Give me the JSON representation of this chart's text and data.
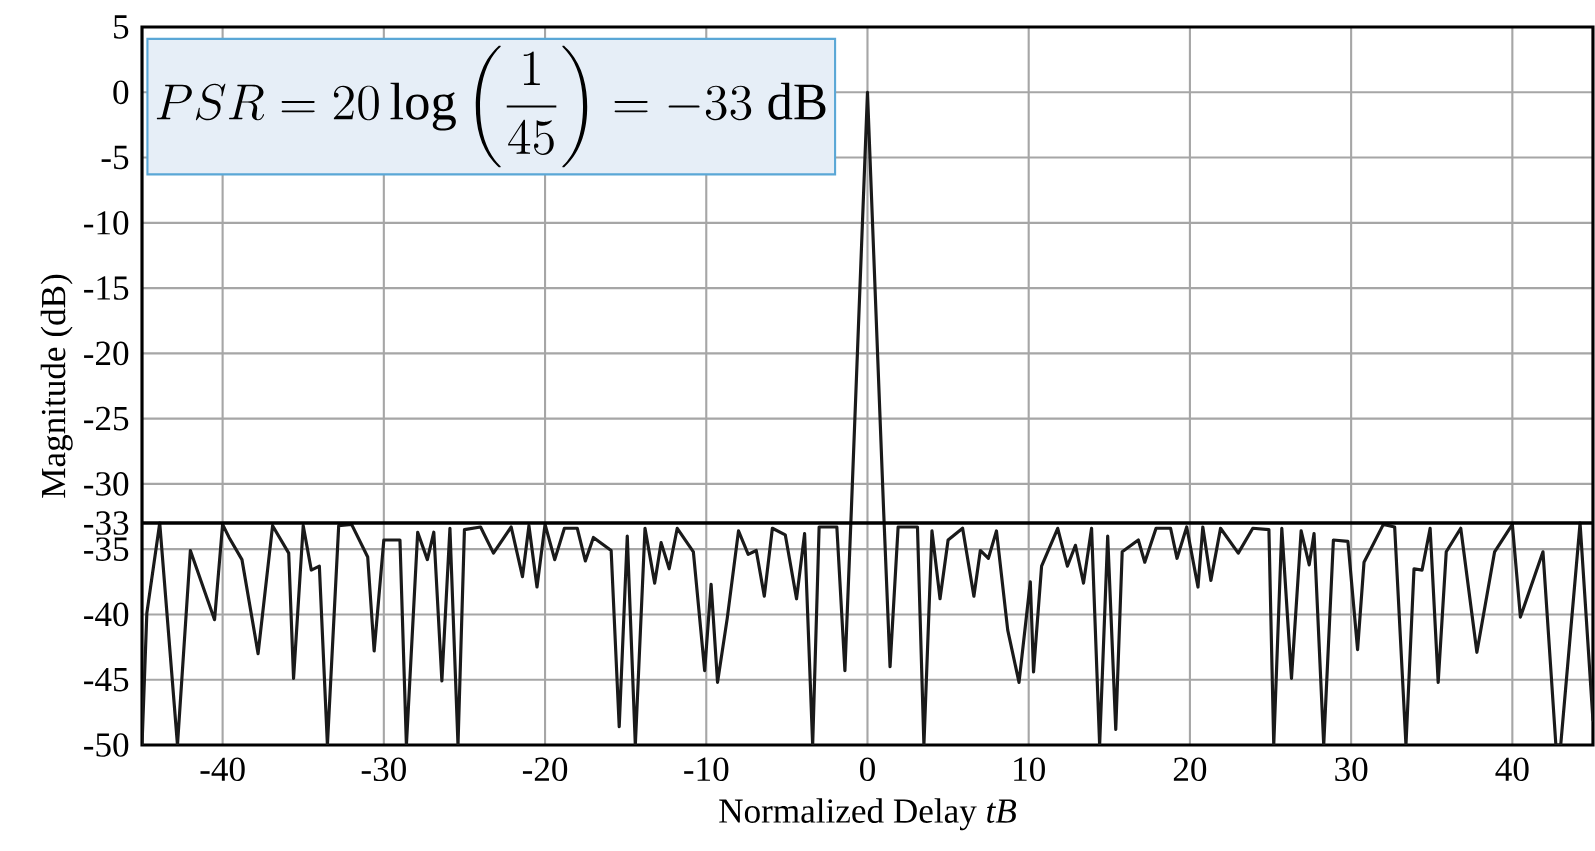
{
  "chart_data": {
    "type": "line",
    "xlabel": "Normalized Delay *tB*",
    "ylabel": "Magnitude (dB)",
    "annotations": [
      "PSR = 20\\log\\left(\\frac{1}{45}\\right) = -33\\ \\mathrm{dB}"
    ],
    "xlim": [
      -45,
      45
    ],
    "xticks": [
      -40,
      -30,
      -20,
      -10,
      0,
      10,
      20,
      30,
      40
    ],
    "ylim": [
      -50,
      5
    ],
    "yticks": [
      5,
      0,
      -5,
      -10,
      -15,
      -20,
      -25,
      -30,
      -33,
      -35,
      -40,
      -45,
      -50
    ],
    "grid": true,
    "marker": "none",
    "line_style": "solid",
    "ref_lines": [
      {
        "axis": "y",
        "value": -33,
        "color": "#000000"
      }
    ],
    "series": [
      {
        "color": "#1a1a1a",
        "x": [
          -45.0,
          -44.7,
          -43.9,
          -42.8,
          -42.0,
          -40.5,
          -40.0,
          -39.6,
          -38.8,
          -37.8,
          -36.9,
          -35.9,
          -35.6,
          -35.0,
          -34.5,
          -34.0,
          -33.5,
          -32.8,
          -32.0,
          -31.0,
          -30.6,
          -30.0,
          -29.0,
          -28.6,
          -27.9,
          -27.3,
          -26.9,
          -26.4,
          -25.9,
          -25.4,
          -25.0,
          -24.0,
          -23.2,
          -22.1,
          -21.4,
          -21.0,
          -20.5,
          -20.0,
          -19.4,
          -18.8,
          -18.0,
          -17.5,
          -17.0,
          -15.9,
          -15.4,
          -14.9,
          -14.4,
          -13.8,
          -13.2,
          -12.8,
          -12.3,
          -11.8,
          -10.8,
          -10.1,
          -9.7,
          -9.3,
          -8.7,
          -8.0,
          -7.4,
          -6.9,
          -6.4,
          -5.9,
          -5.1,
          -4.4,
          -3.9,
          -3.4,
          -3.0,
          -1.9,
          -1.4,
          -1.0,
          0.0,
          1.0,
          1.4,
          1.9,
          3.1,
          3.5,
          4.0,
          4.5,
          5.0,
          5.9,
          6.6,
          7.0,
          7.5,
          8.0,
          8.7,
          9.4,
          10.1,
          10.3,
          10.8,
          11.8,
          12.4,
          12.9,
          13.4,
          13.9,
          14.4,
          14.9,
          15.4,
          15.8,
          16.8,
          17.2,
          17.9,
          18.8,
          19.2,
          19.8,
          20.5,
          20.8,
          21.3,
          21.9,
          23.0,
          23.9,
          24.9,
          25.2,
          25.7,
          26.3,
          26.9,
          27.4,
          27.7,
          28.3,
          28.9,
          29.8,
          30.4,
          30.8,
          32.0,
          32.7,
          33.4,
          33.9,
          34.4,
          34.9,
          35.4,
          35.9,
          36.8,
          37.8,
          38.9,
          40.0,
          40.5,
          41.9,
          42.7,
          43.0,
          44.2,
          45.0
        ],
        "values": [
          -50,
          -39.9,
          -33,
          -50,
          -35.1,
          -40.4,
          -33.1,
          -34.1,
          -35.8,
          -43.0,
          -33.2,
          -35.3,
          -44.9,
          -33.2,
          -36.6,
          -36.3,
          -50,
          -33.2,
          -33.1,
          -35.6,
          -42.8,
          -34.3,
          -34.3,
          -50,
          -33.7,
          -35.8,
          -33.7,
          -45.1,
          -33.4,
          -50,
          -33.5,
          -33.3,
          -35.3,
          -33.3,
          -37.1,
          -33.2,
          -37.9,
          -33.1,
          -35.8,
          -33.4,
          -33.4,
          -35.9,
          -34.1,
          -35.1,
          -48.6,
          -34.0,
          -50,
          -33.4,
          -37.6,
          -34.5,
          -36.5,
          -33.4,
          -35.2,
          -44.3,
          -37.7,
          -45.2,
          -40.3,
          -33.6,
          -35.4,
          -35.1,
          -38.6,
          -33.4,
          -33.9,
          -38.8,
          -33.8,
          -50,
          -33.3,
          -33.3,
          -44.3,
          -32,
          0,
          -32,
          -44.0,
          -33.3,
          -33.3,
          -50,
          -33.6,
          -38.8,
          -34.3,
          -33.4,
          -38.6,
          -35.1,
          -35.7,
          -33.6,
          -41.2,
          -45.2,
          -37.5,
          -44.4,
          -36.3,
          -33.4,
          -36.3,
          -34.7,
          -37.6,
          -33.4,
          -50,
          -34.0,
          -48.8,
          -35.2,
          -34.3,
          -36.0,
          -33.4,
          -33.4,
          -35.7,
          -33.3,
          -37.9,
          -33.3,
          -37.4,
          -33.4,
          -35.3,
          -33.4,
          -33.5,
          -50,
          -33.4,
          -44.9,
          -33.6,
          -36.2,
          -33.8,
          -50,
          -34.3,
          -34.4,
          -42.7,
          -36.0,
          -33.1,
          -33.3,
          -50,
          -36.5,
          -36.6,
          -33.4,
          -45.2,
          -35.2,
          -33.4,
          -42.9,
          -35.2,
          -33.1,
          -40.2,
          -35.2,
          -50,
          -50,
          -33.0,
          -48.1
        ]
      }
    ]
  }
}
